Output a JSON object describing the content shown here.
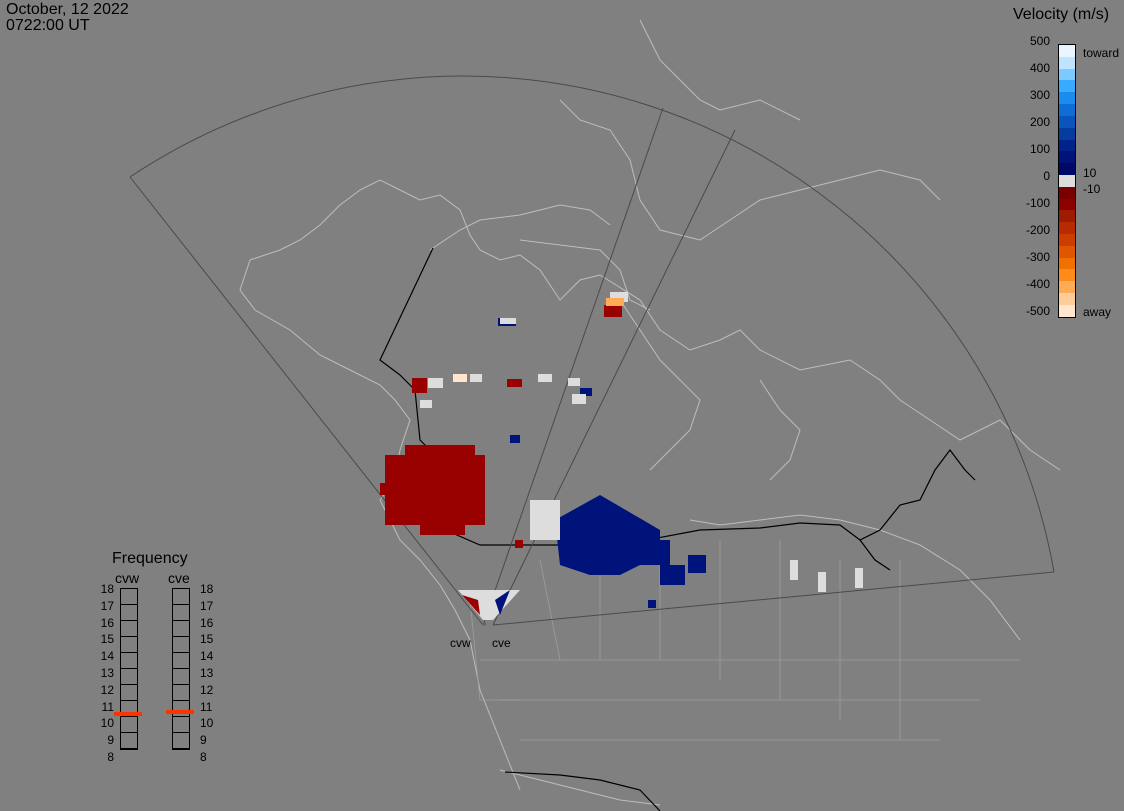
{
  "header": {
    "date": "October, 12 2022",
    "time": "0722:00 UT"
  },
  "colorbar": {
    "title": "Velocity (m/s)",
    "ticks": [
      "500",
      "400",
      "300",
      "200",
      "100",
      "10",
      "0",
      "-10",
      "-100",
      "-200",
      "-300",
      "-400",
      "-500"
    ],
    "toward_label": "toward",
    "away_label": "away",
    "colors_toward": [
      "#eaf6ff",
      "#bfe4ff",
      "#7ccaff",
      "#38aaff",
      "#1a8cf0",
      "#0f6ed6",
      "#0a55bd",
      "#063c9e",
      "#002289",
      "#00137a",
      "#000a66"
    ],
    "colors_away": [
      "#7a0000",
      "#8c0000",
      "#9e1a00",
      "#b82a00",
      "#cc3d00",
      "#e05500",
      "#f07000",
      "#ff8c1a",
      "#ffab55",
      "#ffcc99",
      "#ffe6cc"
    ]
  },
  "frequency": {
    "title": "Frequency",
    "radars": [
      {
        "name": "cvw",
        "value_mhz": 10.5
      },
      {
        "name": "cve",
        "value_mhz": 10.6
      }
    ],
    "levels": [
      "18",
      "17",
      "16",
      "15",
      "14",
      "13",
      "12",
      "11",
      "10",
      "9",
      "8"
    ]
  },
  "map": {
    "radar_sites": [
      "cvw",
      "cve"
    ],
    "colors": {
      "background": "#808080",
      "coast": "#bdbdbd",
      "border": "#000000",
      "fov": "#4a4a4a",
      "toward": "#00137a",
      "away": "#990000",
      "ground": "#dddddd"
    }
  }
}
